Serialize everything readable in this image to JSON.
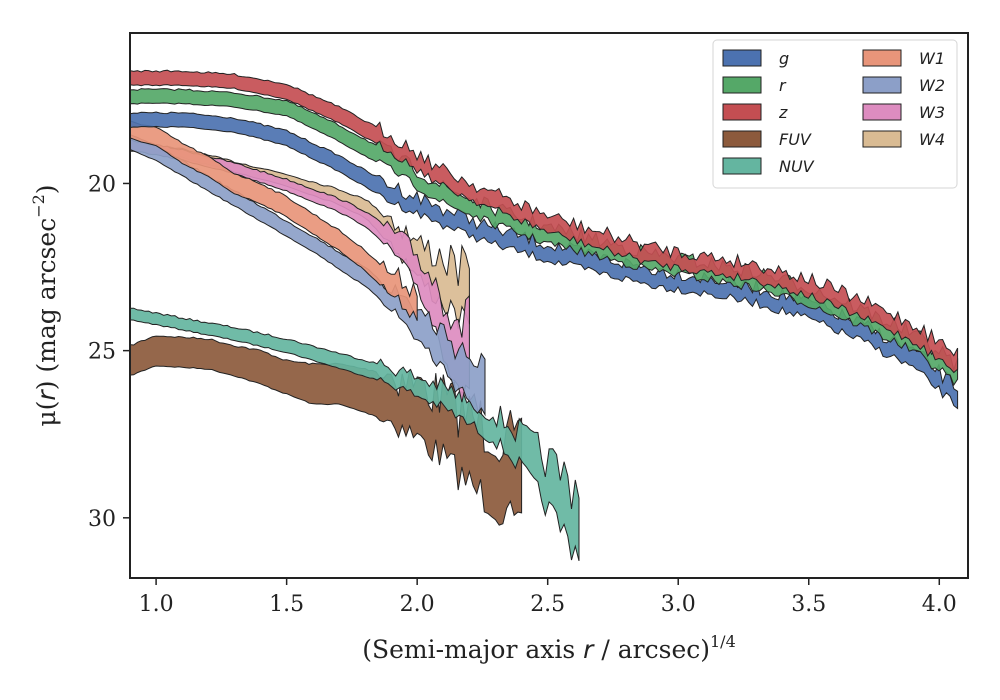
{
  "chart_data": {
    "type": "area",
    "xlabel_prefix": "(Semi-major axis ",
    "xlabel_var": "r",
    "xlabel_mid": " / arcsec)",
    "xlabel_sup": "1/4",
    "ylabel_prefix": "μ(",
    "ylabel_var": "r",
    "ylabel_mid": ") (mag arcsec",
    "ylabel_sup": "−2",
    "ylabel_suffix": ")",
    "xlim": [
      0.9,
      4.11
    ],
    "ylim": [
      31.8,
      15.5
    ],
    "y_inverted": true,
    "xticks": [
      1.0,
      1.5,
      2.0,
      2.5,
      3.0,
      3.5,
      4.0
    ],
    "xtick_labels": [
      "1.0",
      "1.5",
      "2.0",
      "2.5",
      "3.0",
      "3.5",
      "4.0"
    ],
    "yticks": [
      20,
      25,
      30
    ],
    "ytick_labels": [
      "20",
      "25",
      "30"
    ],
    "legend_position": "top-right",
    "legend_columns": 2,
    "series": [
      {
        "name": "g",
        "color": "#4c72b0",
        "points": [
          [
            0.9,
            18.1
          ],
          [
            1.1,
            18.1
          ],
          [
            1.3,
            18.25
          ],
          [
            1.5,
            18.65
          ],
          [
            1.7,
            19.4
          ],
          [
            1.9,
            20.3
          ],
          [
            2.1,
            21.0
          ],
          [
            2.3,
            21.6
          ],
          [
            2.5,
            22.05
          ],
          [
            2.7,
            22.45
          ],
          [
            2.9,
            22.8
          ],
          [
            3.1,
            23.05
          ],
          [
            3.3,
            23.35
          ],
          [
            3.5,
            23.8
          ],
          [
            3.7,
            24.45
          ],
          [
            3.9,
            25.25
          ],
          [
            4.07,
            26.4
          ]
        ],
        "width": [
          0.42,
          0.42,
          0.42,
          0.45,
          0.48,
          0.5,
          0.48,
          0.48,
          0.48,
          0.48,
          0.48,
          0.48,
          0.48,
          0.5,
          0.5,
          0.52,
          0.55
        ]
      },
      {
        "name": "r",
        "color": "#55a868",
        "points": [
          [
            0.9,
            17.4
          ],
          [
            1.1,
            17.4
          ],
          [
            1.3,
            17.5
          ],
          [
            1.5,
            17.75
          ],
          [
            1.7,
            18.5
          ],
          [
            1.9,
            19.35
          ],
          [
            2.1,
            20.35
          ],
          [
            2.3,
            21.0
          ],
          [
            2.5,
            21.55
          ],
          [
            2.7,
            21.95
          ],
          [
            2.9,
            22.35
          ],
          [
            3.1,
            22.6
          ],
          [
            3.3,
            22.9
          ],
          [
            3.5,
            23.35
          ],
          [
            3.7,
            24.0
          ],
          [
            3.9,
            24.75
          ],
          [
            4.07,
            25.7
          ]
        ],
        "width": [
          0.42,
          0.42,
          0.42,
          0.45,
          0.48,
          0.5,
          0.48,
          0.48,
          0.48,
          0.48,
          0.48,
          0.48,
          0.48,
          0.5,
          0.5,
          0.52,
          0.55
        ]
      },
      {
        "name": "z",
        "color": "#c44e52",
        "points": [
          [
            0.9,
            16.85
          ],
          [
            1.1,
            16.85
          ],
          [
            1.3,
            16.95
          ],
          [
            1.5,
            17.25
          ],
          [
            1.7,
            17.95
          ],
          [
            1.9,
            18.8
          ],
          [
            2.1,
            19.85
          ],
          [
            2.3,
            20.55
          ],
          [
            2.5,
            21.2
          ],
          [
            2.7,
            21.7
          ],
          [
            2.9,
            22.15
          ],
          [
            3.1,
            22.4
          ],
          [
            3.3,
            22.65
          ],
          [
            3.5,
            23.1
          ],
          [
            3.7,
            23.75
          ],
          [
            3.9,
            24.45
          ],
          [
            4.07,
            25.4
          ]
        ],
        "width": [
          0.42,
          0.42,
          0.42,
          0.45,
          0.48,
          0.5,
          0.48,
          0.48,
          0.48,
          0.48,
          0.48,
          0.48,
          0.48,
          0.5,
          0.5,
          0.52,
          0.55
        ]
      },
      {
        "name": "FUV",
        "color": "#8c5a3c",
        "points": [
          [
            0.9,
            25.3
          ],
          [
            1.0,
            25.0
          ],
          [
            1.1,
            25.05
          ],
          [
            1.2,
            25.1
          ],
          [
            1.3,
            25.3
          ],
          [
            1.4,
            25.5
          ],
          [
            1.5,
            25.8
          ],
          [
            1.6,
            26.0
          ],
          [
            1.7,
            26.0
          ],
          [
            1.8,
            26.2
          ],
          [
            1.9,
            26.4
          ],
          [
            2.0,
            26.8
          ],
          [
            2.1,
            27.3
          ],
          [
            2.2,
            28.0
          ],
          [
            2.3,
            28.5
          ],
          [
            2.4,
            29.3
          ]
        ],
        "width": [
          0.9,
          0.9,
          0.9,
          0.9,
          0.9,
          1.0,
          1.0,
          1.2,
          1.2,
          1.3,
          1.4,
          1.6,
          1.8,
          2.0,
          2.2,
          2.4
        ]
      },
      {
        "name": "NUV",
        "color": "#64b5a0",
        "points": [
          [
            0.9,
            23.9
          ],
          [
            1.1,
            24.2
          ],
          [
            1.3,
            24.5
          ],
          [
            1.5,
            24.85
          ],
          [
            1.7,
            25.3
          ],
          [
            1.9,
            25.75
          ],
          [
            2.1,
            26.4
          ],
          [
            2.3,
            27.3
          ],
          [
            2.4,
            28.0
          ],
          [
            2.5,
            29.0
          ],
          [
            2.62,
            30.1
          ]
        ],
        "width": [
          0.35,
          0.35,
          0.38,
          0.4,
          0.45,
          0.5,
          0.6,
          0.8,
          1.0,
          1.4,
          2.0
        ]
      },
      {
        "name": "W1",
        "color": "#e8957a",
        "points": [
          [
            0.9,
            18.4
          ],
          [
            1.0,
            18.6
          ],
          [
            1.1,
            19.1
          ],
          [
            1.2,
            19.5
          ],
          [
            1.3,
            20.0
          ],
          [
            1.4,
            20.3
          ],
          [
            1.5,
            20.7
          ],
          [
            1.6,
            21.2
          ],
          [
            1.7,
            21.7
          ],
          [
            1.8,
            22.3
          ],
          [
            1.9,
            23.0
          ],
          [
            2.0,
            23.6
          ]
        ],
        "width": [
          0.5,
          0.55,
          0.6,
          0.6,
          0.6,
          0.6,
          0.6,
          0.6,
          0.6,
          0.6,
          0.65,
          0.8
        ]
      },
      {
        "name": "W2",
        "color": "#8c9fc8",
        "points": [
          [
            0.9,
            18.75
          ],
          [
            1.0,
            19.1
          ],
          [
            1.1,
            19.55
          ],
          [
            1.2,
            20.0
          ],
          [
            1.3,
            20.45
          ],
          [
            1.4,
            20.9
          ],
          [
            1.5,
            21.35
          ],
          [
            1.6,
            21.8
          ],
          [
            1.7,
            22.3
          ],
          [
            1.8,
            22.8
          ],
          [
            1.9,
            23.4
          ],
          [
            2.0,
            24.2
          ],
          [
            2.1,
            25.0
          ],
          [
            2.2,
            25.8
          ],
          [
            2.26,
            26.4
          ]
        ],
        "width": [
          0.45,
          0.45,
          0.45,
          0.45,
          0.45,
          0.45,
          0.45,
          0.45,
          0.5,
          0.55,
          0.6,
          0.9,
          1.1,
          1.3,
          1.5
        ]
      },
      {
        "name": "W3",
        "color": "#dd8cc0",
        "points": [
          [
            0.9,
            18.85
          ],
          [
            1.1,
            19.15
          ],
          [
            1.3,
            19.55
          ],
          [
            1.5,
            20.05
          ],
          [
            1.7,
            20.65
          ],
          [
            1.8,
            21.05
          ],
          [
            1.9,
            21.7
          ],
          [
            2.0,
            22.6
          ],
          [
            2.1,
            24.1
          ],
          [
            2.2,
            25.5
          ]
        ],
        "width": [
          0.3,
          0.3,
          0.32,
          0.35,
          0.4,
          0.45,
          0.6,
          0.9,
          1.6,
          2.4
        ]
      },
      {
        "name": "W4",
        "color": "#d9bb93",
        "points": [
          [
            0.9,
            18.9
          ],
          [
            1.1,
            19.1
          ],
          [
            1.3,
            19.5
          ],
          [
            1.5,
            19.9
          ],
          [
            1.7,
            20.4
          ],
          [
            1.8,
            20.75
          ],
          [
            1.9,
            21.4
          ],
          [
            2.0,
            22.3
          ],
          [
            2.1,
            22.9
          ],
          [
            2.2,
            23.5
          ]
        ],
        "width": [
          0.25,
          0.25,
          0.3,
          0.35,
          0.45,
          0.55,
          0.75,
          1.0,
          1.4,
          1.6
        ]
      }
    ],
    "legend": [
      {
        "label": "g",
        "color": "#4c72b0"
      },
      {
        "label": "r",
        "color": "#55a868"
      },
      {
        "label": "z",
        "color": "#c44e52"
      },
      {
        "label": "FUV",
        "color": "#8c5a3c"
      },
      {
        "label": "NUV",
        "color": "#64b5a0"
      },
      {
        "label": "W1",
        "color": "#e8957a"
      },
      {
        "label": "W2",
        "color": "#8c9fc8"
      },
      {
        "label": "W3",
        "color": "#dd8cc0"
      },
      {
        "label": "W4",
        "color": "#d9bb93"
      }
    ]
  }
}
